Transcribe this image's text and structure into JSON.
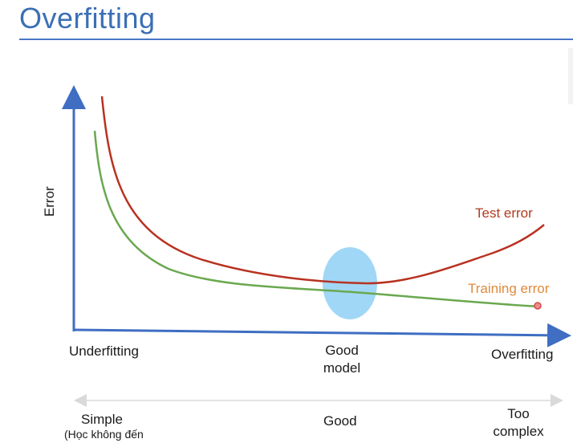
{
  "title": "Overfitting",
  "axis": {
    "y_label": "Error"
  },
  "curves": {
    "test": {
      "label": "Test error",
      "color": "#b83220"
    },
    "training": {
      "label": "Training error",
      "color": "#6aa84f",
      "label_color": "#e08a3c"
    }
  },
  "highlight": {
    "color": "#8fd0f5"
  },
  "x_labels": {
    "underfitting": "Underfitting",
    "good_model_line1": "Good",
    "good_model_line2": "model",
    "overfitting": "Overfitting"
  },
  "complexity_scale": {
    "simple": "Simple",
    "simple_note": "(Học không đến",
    "good": "Good",
    "too_complex_line1": "Too",
    "too_complex_line2": "complex"
  },
  "colors": {
    "title": "#3b6fb6",
    "axis": "#3f6ec2"
  }
}
